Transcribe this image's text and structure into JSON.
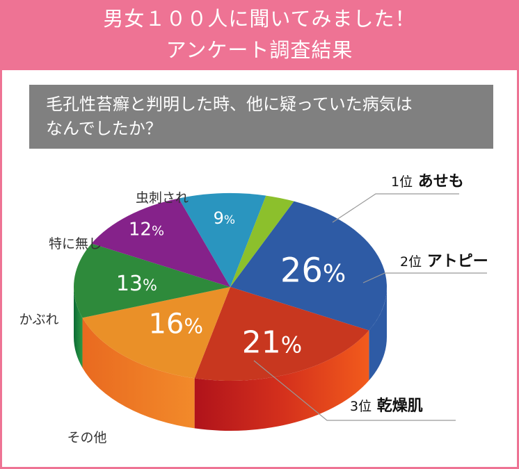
{
  "header": {
    "title_line1": "男女１００人に聞いてみました！",
    "title_line2": "アンケート調査結果"
  },
  "question": {
    "line1": "毛孔性苔癬と判明した時、他に疑っていた病気は",
    "line2": "なんでしたか？"
  },
  "chart_data": {
    "type": "pie",
    "title": "毛孔性苔癬と判明した時、他に疑っていた病気はなんでしたか？",
    "unit": "%",
    "slices": [
      {
        "label": "あせも",
        "rank": "1位",
        "value": 26,
        "color": "#2e5ba5"
      },
      {
        "label": "アトピー",
        "rank": "2位",
        "value": 21,
        "color": "#c8371f"
      },
      {
        "label": "乾燥肌",
        "rank": "3位",
        "value": 16,
        "color": "#ea9028"
      },
      {
        "label": "その他",
        "rank": "",
        "value": 13,
        "color": "#2e8a3b"
      },
      {
        "label": "かぶれ",
        "rank": "",
        "value": 12,
        "color": "#85228a"
      },
      {
        "label": "特に無し",
        "rank": "",
        "value": 9,
        "color": "#2a95bf"
      },
      {
        "label": "虫刺され",
        "rank": "",
        "value": 3,
        "color": "#8cc02c"
      }
    ]
  },
  "colors": {
    "header_bg": "#ee7394",
    "question_bg": "#808080"
  }
}
